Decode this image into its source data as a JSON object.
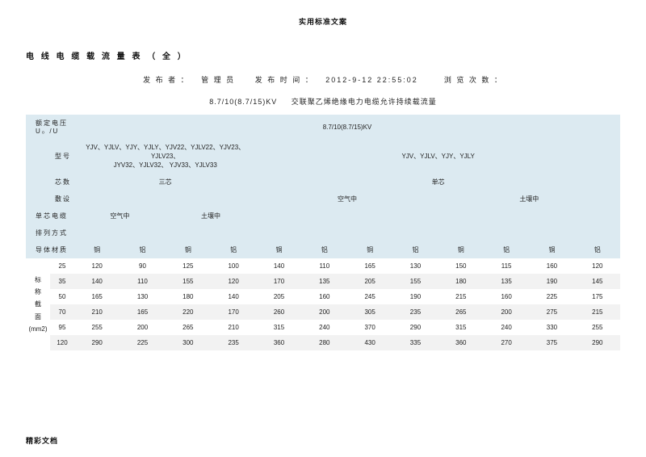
{
  "header_top": "实用标准文案",
  "doc_title": "电 线 电 缆 载 流 量 表 （ 全 ）",
  "publisher_label": "发 布 者 ：",
  "publisher_value": "管 理 员",
  "pubtime_label": "发 布 时 间 ：",
  "pubtime_value": "2012-9-12 22:55:02",
  "views_label": "浏 览 次 数 ：",
  "table_caption_left": "8.7/10(8.7/15)KV",
  "table_caption_right": "交联聚乙烯绝缘电力电缆允许持续载流量",
  "rated_voltage_label": "额定电压 U₀ /U",
  "rated_voltage_value": "8.7/10(8.7/15)KV",
  "model_label": "型号",
  "model_left_line1": "YJV、YJLV、YJY、YJLY、YJV22、YJLV22、YJV23、YJLV23、",
  "model_left_line2": "JYV32、YJLV32、 YJV33、YJLV33",
  "model_right": "YJV、YJLV、YJY、YJLY",
  "cores_label": "芯数",
  "cores_left": "三芯",
  "cores_right": "单芯",
  "laying_label": "敷设",
  "laying_air": "空气中",
  "laying_soil": "土壤中",
  "single_core_label": "单芯电缆",
  "arrange_label": "排列方式",
  "conductor_label": "导体材质",
  "mat_cu": "铜",
  "mat_al": "铝",
  "side_label_chars": [
    "标",
    "称",
    "截",
    "面"
  ],
  "side_unit": "(mm2)",
  "rows": [
    {
      "size": "25",
      "v": [
        120,
        90,
        125,
        100,
        140,
        110,
        165,
        130,
        150,
        115,
        160,
        120
      ]
    },
    {
      "size": "35",
      "v": [
        140,
        110,
        155,
        120,
        170,
        135,
        205,
        155,
        180,
        135,
        190,
        145
      ]
    },
    {
      "size": "50",
      "v": [
        165,
        130,
        180,
        140,
        205,
        160,
        245,
        190,
        215,
        160,
        225,
        175
      ]
    },
    {
      "size": "70",
      "v": [
        210,
        165,
        220,
        170,
        260,
        200,
        305,
        235,
        265,
        200,
        275,
        215
      ]
    },
    {
      "size": "95",
      "v": [
        255,
        200,
        265,
        210,
        315,
        240,
        370,
        290,
        315,
        240,
        330,
        255
      ]
    },
    {
      "size": "120",
      "v": [
        290,
        225,
        300,
        235,
        360,
        280,
        430,
        335,
        360,
        270,
        375,
        290
      ]
    }
  ],
  "footer": "精彩文档",
  "colors": {
    "thead_bg": "#dceaf1",
    "row_alt_bg": "#f2f2f2",
    "text": "#222222",
    "bg": "#ffffff"
  }
}
